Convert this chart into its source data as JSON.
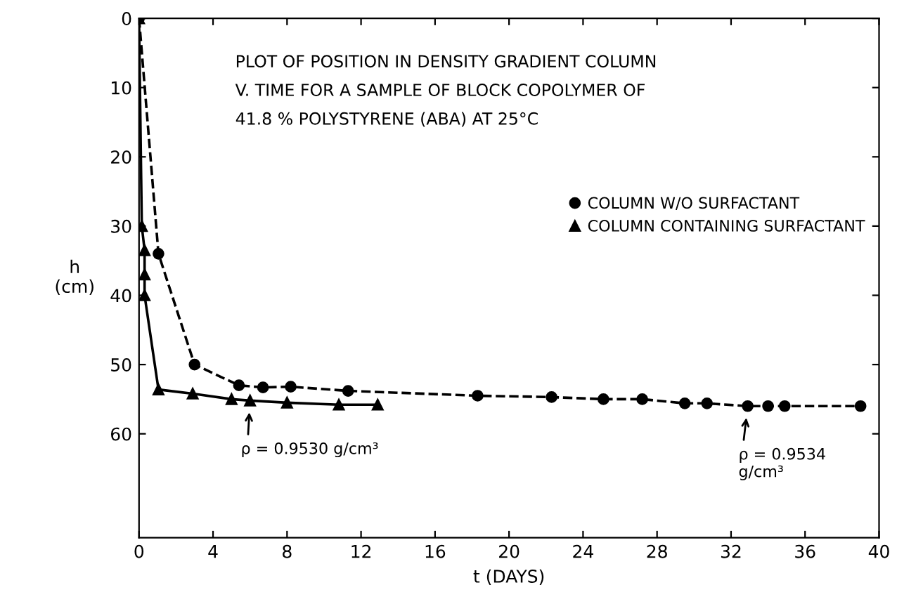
{
  "chart_data": {
    "type": "line",
    "title": "PLOT OF POSITION IN DENSITY GRADIENT COLUMN\nV. TIME FOR A SAMPLE OF BLOCK COPOLYMER OF\n41.8 % POLYSTYRENE (ABA) AT 25°C",
    "xlabel": "t (DAYS)",
    "ylabel": "h\n(cm)",
    "series": [
      {
        "name": "COLUMN W/O SURFACTANT",
        "color": "#000000",
        "marker": "circle",
        "line_style": "dashed",
        "x": [
          0,
          1.05,
          3.0,
          5.4,
          6.7,
          8.2,
          11.3,
          18.3,
          22.3,
          25.1,
          27.2,
          29.5,
          30.7,
          32.9,
          34.0,
          34.9,
          39.0
        ],
        "values": [
          0,
          34,
          50,
          53,
          53.3,
          53.2,
          53.8,
          54.5,
          54.7,
          55,
          55,
          55.6,
          55.6,
          56,
          56,
          56,
          56
        ]
      },
      {
        "name": "COLUMN CONTAINING SURFACTANT",
        "color": "#000000",
        "marker": "triangle",
        "line_style": "solid",
        "x": [
          0,
          0.15,
          0.3,
          0.3,
          0.3,
          1.05,
          2.9,
          5.0,
          6.0,
          8.0,
          10.8,
          12.9
        ],
        "values": [
          0,
          30,
          33.5,
          37,
          40,
          53.6,
          54.2,
          55,
          55.2,
          55.5,
          55.8,
          55.8
        ]
      }
    ],
    "xlim": [
      0,
      40
    ],
    "ylim": [
      75,
      0
    ],
    "xticks": [
      0,
      4,
      8,
      12,
      16,
      20,
      24,
      28,
      32,
      36,
      40
    ],
    "yticks": [
      0,
      10,
      20,
      30,
      40,
      50,
      60
    ],
    "grid": false,
    "legend": "right",
    "annotations": [
      {
        "text": "ρ = 0.9530 g/cm³",
        "x": 6.0,
        "y": 55.2
      },
      {
        "text": "ρ = 0.9534\ng/cm³",
        "x": 32.9,
        "y": 56
      }
    ]
  }
}
